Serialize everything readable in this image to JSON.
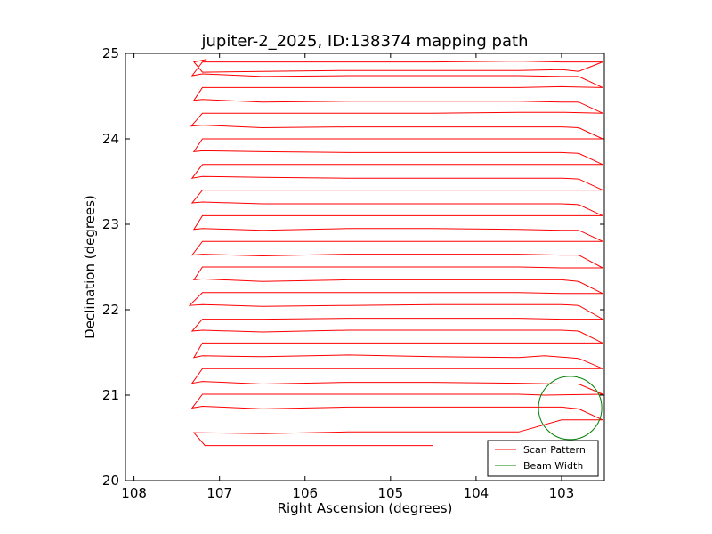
{
  "chart_data": {
    "type": "line",
    "title": "jupiter-2_2025, ID:138374 mapping path",
    "xlabel": "Right Ascension (degrees)",
    "ylabel": "Declination (degrees)",
    "xlim": [
      108.1,
      102.5
    ],
    "ylim": [
      20,
      25
    ],
    "xticks": [
      108,
      107,
      106,
      105,
      104,
      103
    ],
    "yticks": [
      20,
      21,
      22,
      23,
      24,
      25
    ],
    "x_inverted": true,
    "grid": false,
    "legend": {
      "placement": "lower-right",
      "entries": [
        "Scan Pattern",
        "Beam Width"
      ]
    },
    "series": [
      {
        "name": "Scan Pattern",
        "type": "line",
        "color": "#ff0000",
        "x": [
          104.5,
          106.0,
          107.0,
          107.17,
          107.3,
          106.5,
          105.5,
          104.5,
          103.5,
          103.0,
          102.52,
          102.8,
          103.0,
          103.5,
          104.5,
          105.5,
          106.5,
          107.2,
          107.32,
          107.2,
          106.5,
          105.5,
          104.5,
          103.5,
          103.2,
          102.52,
          102.8,
          103.0,
          103.5,
          104.5,
          105.5,
          106.5,
          107.2,
          107.32,
          107.2,
          106.5,
          105.5,
          104.5,
          103.5,
          103.2,
          102.52,
          102.8,
          103.2,
          103.5,
          104.5,
          105.5,
          106.5,
          107.2,
          107.3,
          107.2,
          106.5,
          105.5,
          104.5,
          103.5,
          103.0,
          102.52,
          102.8,
          103.0,
          103.5,
          104.5,
          105.5,
          106.5,
          107.2,
          107.32,
          107.2,
          106.5,
          105.5,
          104.5,
          103.5,
          103.0,
          102.52,
          102.8,
          103.0,
          103.5,
          104.5,
          105.5,
          106.5,
          107.2,
          107.35,
          107.2,
          106.5,
          105.5,
          104.5,
          103.5,
          103.0,
          102.52,
          102.8,
          103.0,
          103.5,
          104.5,
          105.5,
          106.5,
          107.2,
          107.3,
          107.2,
          106.5,
          105.5,
          104.5,
          103.5,
          103.0,
          102.52,
          102.8,
          103.0,
          103.5,
          104.5,
          105.5,
          106.5,
          107.2,
          107.32,
          107.2,
          106.5,
          105.5,
          104.5,
          103.5,
          103.0,
          102.52,
          102.8,
          103.0,
          103.5,
          104.5,
          105.5,
          106.5,
          107.2,
          107.3,
          107.2,
          106.5,
          105.5,
          104.5,
          103.5,
          103.0,
          102.52,
          102.8,
          103.0,
          103.5,
          104.5,
          105.5,
          106.5,
          107.2,
          107.32,
          107.2,
          106.5,
          105.5,
          104.5,
          103.5,
          103.0,
          102.52,
          102.8,
          103.0,
          103.5,
          104.5,
          105.5,
          106.5,
          107.2,
          107.32,
          107.2,
          106.5,
          105.5,
          104.5,
          103.5,
          103.0,
          102.52,
          102.8,
          103.0,
          103.5,
          104.5,
          105.5,
          106.5,
          107.2,
          107.3,
          107.2,
          106.5,
          105.5,
          104.5,
          103.5,
          103.0,
          102.52,
          102.8,
          103.0,
          103.5,
          104.5,
          105.5,
          106.5,
          107.2,
          107.33,
          107.2,
          106.5,
          105.5,
          104.5,
          103.5,
          103.0,
          102.52,
          102.8,
          103.0,
          103.5,
          104.5,
          105.5,
          106.5,
          107.2,
          107.3,
          107.2,
          106.5,
          105.5,
          104.5,
          103.5,
          103.0,
          102.52,
          102.8,
          103.0,
          103.5,
          104.5,
          105.5,
          106.5,
          107.2,
          107.32,
          107.2,
          106.5,
          105.5,
          104.5,
          103.5,
          103.0,
          102.52,
          102.8,
          103.0,
          103.5,
          104.5,
          105.5,
          106.5,
          107.2,
          107.3,
          107.15
        ],
        "y": [
          20.41,
          20.41,
          20.41,
          20.41,
          20.56,
          20.55,
          20.57,
          20.57,
          20.57,
          20.71,
          20.71,
          20.84,
          20.86,
          20.86,
          20.86,
          20.86,
          20.84,
          20.87,
          20.85,
          21.01,
          21.01,
          21.01,
          21.01,
          21.01,
          21.0,
          21.01,
          21.13,
          21.13,
          21.14,
          21.15,
          21.15,
          21.13,
          21.16,
          21.14,
          21.31,
          21.31,
          21.31,
          21.31,
          21.31,
          21.31,
          21.31,
          21.43,
          21.46,
          21.44,
          21.45,
          21.47,
          21.45,
          21.46,
          21.44,
          21.61,
          21.61,
          21.61,
          21.61,
          21.61,
          21.61,
          21.61,
          21.75,
          21.76,
          21.76,
          21.76,
          21.76,
          21.74,
          21.76,
          21.75,
          21.89,
          21.89,
          21.9,
          21.9,
          21.9,
          21.89,
          21.89,
          22.05,
          22.06,
          22.06,
          22.06,
          22.05,
          22.04,
          22.06,
          22.05,
          22.2,
          22.2,
          22.2,
          22.2,
          22.2,
          22.19,
          22.19,
          22.33,
          22.35,
          22.35,
          22.35,
          22.35,
          22.33,
          22.36,
          22.35,
          22.5,
          22.5,
          22.5,
          22.5,
          22.5,
          22.49,
          22.49,
          22.64,
          22.64,
          22.65,
          22.65,
          22.65,
          22.63,
          22.65,
          22.64,
          22.8,
          22.8,
          22.8,
          22.8,
          22.8,
          22.8,
          22.8,
          22.93,
          22.93,
          22.94,
          22.95,
          22.95,
          22.93,
          22.95,
          22.94,
          23.1,
          23.1,
          23.1,
          23.1,
          23.1,
          23.1,
          23.1,
          23.23,
          23.24,
          23.24,
          23.24,
          23.24,
          23.24,
          23.26,
          23.25,
          23.4,
          23.4,
          23.4,
          23.4,
          23.4,
          23.4,
          23.4,
          23.53,
          23.54,
          23.54,
          23.54,
          23.54,
          23.55,
          23.56,
          23.54,
          23.7,
          23.7,
          23.7,
          23.7,
          23.7,
          23.7,
          23.7,
          23.83,
          23.84,
          23.84,
          23.84,
          23.84,
          23.85,
          23.86,
          23.85,
          24.0,
          24.0,
          24.0,
          24.0,
          24.0,
          24.0,
          24.0,
          24.13,
          24.14,
          24.14,
          24.14,
          24.14,
          24.13,
          24.16,
          24.15,
          24.3,
          24.3,
          24.3,
          24.3,
          24.31,
          24.31,
          24.3,
          24.43,
          24.43,
          24.44,
          24.44,
          24.44,
          24.43,
          24.46,
          24.45,
          24.6,
          24.6,
          24.6,
          24.6,
          24.6,
          24.61,
          24.6,
          24.73,
          24.73,
          24.74,
          24.74,
          24.74,
          24.73,
          24.76,
          24.74,
          24.9,
          24.9,
          24.9,
          24.9,
          24.91,
          24.9,
          24.9,
          24.79,
          24.81,
          24.8,
          24.8,
          24.8,
          24.79,
          24.78,
          24.9,
          24.93
        ]
      },
      {
        "name": "Beam Width",
        "type": "circle",
        "color": "#008000",
        "center": [
          102.9,
          20.85
        ],
        "radius_deg": 0.37
      }
    ]
  }
}
